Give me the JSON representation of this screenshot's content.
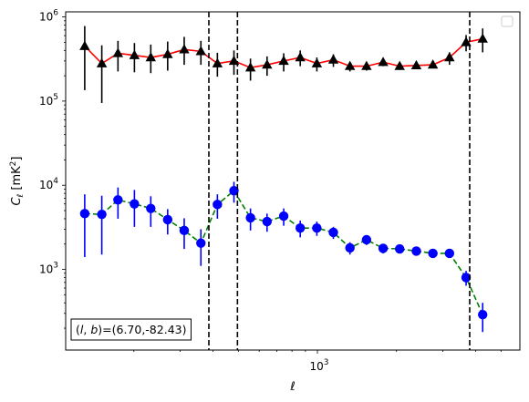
{
  "chart_data": {
    "type": "scatter",
    "title": "",
    "xlabel": "ℓ",
    "ylabel": "C_ℓ [mK²]",
    "x_scale": "log",
    "y_scale": "log",
    "xlim": [
      110,
      5900
    ],
    "ylim": [
      110,
      1150000
    ],
    "x_tick_labels": [
      {
        "value": 1000,
        "base": "10",
        "exp": "3"
      }
    ],
    "y_tick_labels": [
      {
        "value": 1000,
        "base": "10",
        "exp": "3"
      },
      {
        "value": 10000,
        "base": "10",
        "exp": "4"
      },
      {
        "value": 100000,
        "base": "10",
        "exp": "5"
      },
      {
        "value": 1000000,
        "base": "10",
        "exp": "6"
      }
    ],
    "grid": false,
    "legend": "top-right (empty)",
    "vertical_lines": [
      386,
      496,
      3800
    ],
    "annotation": "(l, b)=(6.70,-82.43)",
    "series": [
      {
        "marker": "triangle",
        "marker_color": "#000000",
        "line_color": "#ff0000",
        "line_style": "solid",
        "points": [
          {
            "x": 130,
            "y": 450000,
            "lo": 135000,
            "hi": 780000
          },
          {
            "x": 151,
            "y": 280000,
            "lo": 95000,
            "hi": 460000
          },
          {
            "x": 174,
            "y": 370000,
            "lo": 225000,
            "hi": 520000
          },
          {
            "x": 201,
            "y": 350000,
            "lo": 220000,
            "hi": 490000
          },
          {
            "x": 232,
            "y": 330000,
            "lo": 215000,
            "hi": 470000
          },
          {
            "x": 269,
            "y": 360000,
            "lo": 230000,
            "hi": 510000
          },
          {
            "x": 311,
            "y": 410000,
            "lo": 270000,
            "hi": 580000
          },
          {
            "x": 360,
            "y": 390000,
            "lo": 270000,
            "hi": 520000
          },
          {
            "x": 416,
            "y": 280000,
            "lo": 195000,
            "hi": 375000
          },
          {
            "x": 481,
            "y": 300000,
            "lo": 205000,
            "hi": 400000
          },
          {
            "x": 556,
            "y": 250000,
            "lo": 175000,
            "hi": 320000
          },
          {
            "x": 643,
            "y": 270000,
            "lo": 200000,
            "hi": 340000
          },
          {
            "x": 744,
            "y": 300000,
            "lo": 225000,
            "hi": 370000
          },
          {
            "x": 860,
            "y": 330000,
            "lo": 260000,
            "hi": 400000
          },
          {
            "x": 995,
            "y": 280000,
            "lo": 225000,
            "hi": 330000
          },
          {
            "x": 1150,
            "y": 310000,
            "lo": 255000,
            "hi": 360000
          },
          {
            "x": 1330,
            "y": 260000,
            "lo": 225000,
            "hi": 290000
          },
          {
            "x": 1538,
            "y": 260000,
            "lo": 230000,
            "hi": 290000
          },
          {
            "x": 1779,
            "y": 290000,
            "lo": 260000,
            "hi": 320000
          },
          {
            "x": 2057,
            "y": 260000,
            "lo": 235000,
            "hi": 285000
          },
          {
            "x": 2380,
            "y": 265000,
            "lo": 240000,
            "hi": 290000
          },
          {
            "x": 2752,
            "y": 270000,
            "lo": 245000,
            "hi": 295000
          },
          {
            "x": 3183,
            "y": 330000,
            "lo": 270000,
            "hi": 380000
          },
          {
            "x": 3682,
            "y": 500000,
            "lo": 390000,
            "hi": 610000
          },
          {
            "x": 4258,
            "y": 550000,
            "lo": 380000,
            "hi": 730000
          }
        ]
      },
      {
        "marker": "circle",
        "marker_color": "#0000ff",
        "line_color": "#008000",
        "line_style": "dashed",
        "points": [
          {
            "x": 130,
            "y": 4600,
            "lo": 1400,
            "hi": 7800
          },
          {
            "x": 151,
            "y": 4500,
            "lo": 1500,
            "hi": 7500
          },
          {
            "x": 174,
            "y": 6700,
            "lo": 4000,
            "hi": 9400
          },
          {
            "x": 201,
            "y": 6000,
            "lo": 3200,
            "hi": 8800
          },
          {
            "x": 232,
            "y": 5300,
            "lo": 3200,
            "hi": 7400
          },
          {
            "x": 269,
            "y": 3900,
            "lo": 2600,
            "hi": 5200
          },
          {
            "x": 311,
            "y": 2900,
            "lo": 1750,
            "hi": 4050
          },
          {
            "x": 360,
            "y": 2050,
            "lo": 1100,
            "hi": 3000
          },
          {
            "x": 416,
            "y": 5900,
            "lo": 4000,
            "hi": 7800
          },
          {
            "x": 481,
            "y": 8600,
            "lo": 6200,
            "hi": 11000
          },
          {
            "x": 556,
            "y": 4100,
            "lo": 2900,
            "hi": 5300
          },
          {
            "x": 643,
            "y": 3700,
            "lo": 2800,
            "hi": 4600
          },
          {
            "x": 744,
            "y": 4300,
            "lo": 3300,
            "hi": 5300
          },
          {
            "x": 860,
            "y": 3100,
            "lo": 2400,
            "hi": 3800
          },
          {
            "x": 995,
            "y": 3100,
            "lo": 2500,
            "hi": 3700
          },
          {
            "x": 1150,
            "y": 2750,
            "lo": 2300,
            "hi": 3200
          },
          {
            "x": 1330,
            "y": 1800,
            "lo": 1500,
            "hi": 2100
          },
          {
            "x": 1538,
            "y": 2250,
            "lo": 1950,
            "hi": 2550
          },
          {
            "x": 1779,
            "y": 1780,
            "lo": 1550,
            "hi": 2010
          },
          {
            "x": 2057,
            "y": 1750,
            "lo": 1550,
            "hi": 1950
          },
          {
            "x": 2380,
            "y": 1650,
            "lo": 1480,
            "hi": 1820
          },
          {
            "x": 2752,
            "y": 1550,
            "lo": 1400,
            "hi": 1700
          },
          {
            "x": 3183,
            "y": 1550,
            "lo": 1400,
            "hi": 1700
          },
          {
            "x": 3682,
            "y": 800,
            "lo": 640,
            "hi": 960
          },
          {
            "x": 4258,
            "y": 290,
            "lo": 180,
            "hi": 400
          }
        ]
      }
    ]
  }
}
